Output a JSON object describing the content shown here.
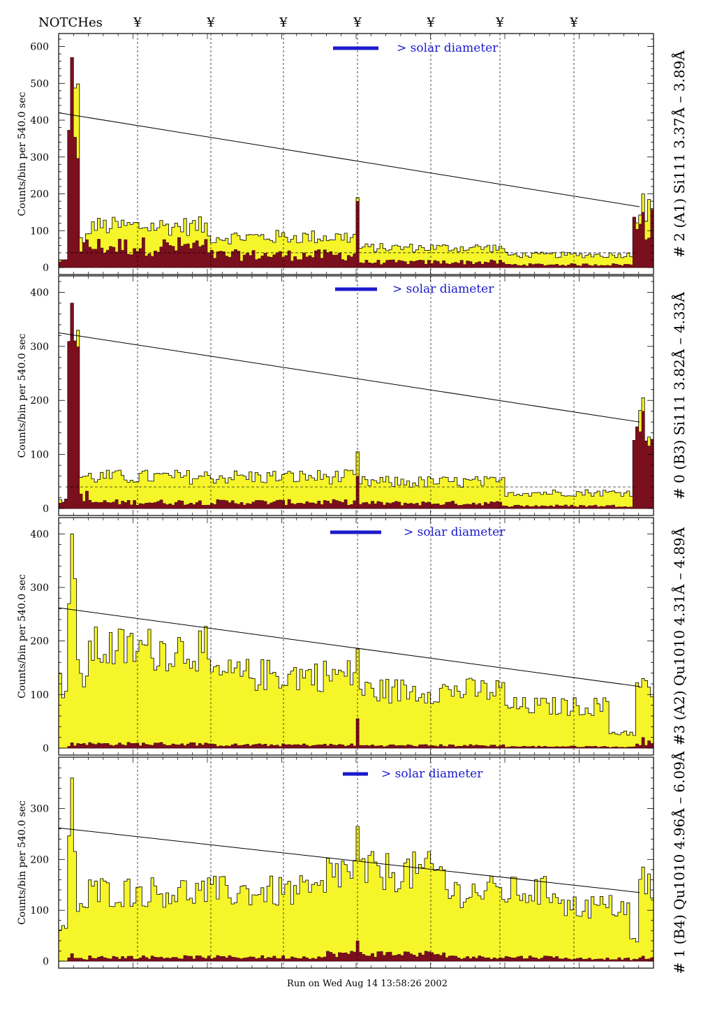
{
  "header": {
    "notches_label": "NOTCHes",
    "notch_symbol": "¥",
    "notch_count": 7
  },
  "footer": {
    "run_text": "Run on Wed Aug 14 13:58:26 2002"
  },
  "colors": {
    "fill_total": "#f5f52a",
    "fill_peak": "#7a0f1e",
    "legend_bar": "#1a1acc",
    "frame": "#000000"
  },
  "chart_data": [
    {
      "type": "bar",
      "panel_label": "# 2 (A1) Si111  3.37Å – 3.89Å",
      "ylabel": "Counts/bin per    540.0 sec",
      "legend_text": "> solar diameter",
      "ylim": [
        0,
        620
      ],
      "yticks": [
        0,
        100,
        200,
        300,
        400,
        500,
        600
      ],
      "bins": 200,
      "trend_line": {
        "start": 420,
        "end": 165
      },
      "dashed_level": 40,
      "peaks": [
        {
          "bin": 4,
          "total": 570,
          "dark": 570
        },
        {
          "bin": 100,
          "total": 190,
          "dark": 180
        },
        {
          "bin": 196,
          "total": 200,
          "dark": 150
        }
      ],
      "segments": [
        {
          "from": 0,
          "to": 3,
          "total": 20,
          "dark": 20
        },
        {
          "from": 3,
          "to": 7,
          "total": 450,
          "dark": 440
        },
        {
          "from": 7,
          "to": 10,
          "total": 80,
          "dark": 60
        },
        {
          "from": 10,
          "to": 50,
          "total": 115,
          "dark": 60
        },
        {
          "from": 50,
          "to": 100,
          "total": 85,
          "dark": 35
        },
        {
          "from": 100,
          "to": 150,
          "total": 55,
          "dark": 15
        },
        {
          "from": 150,
          "to": 193,
          "total": 35,
          "dark": 8
        },
        {
          "from": 193,
          "to": 200,
          "total": 160,
          "dark": 140
        }
      ]
    },
    {
      "type": "bar",
      "panel_label": "# 0 (B3) Si111  3.82Å – 4.33Å",
      "ylabel": "Counts/bin per    540.0 sec",
      "legend_text": "> solar diameter",
      "ylim": [
        0,
        420
      ],
      "yticks": [
        0,
        100,
        200,
        300,
        400
      ],
      "bins": 200,
      "trend_line": {
        "start": 325,
        "end": 160
      },
      "dashed_level": 40,
      "peaks": [
        {
          "bin": 4,
          "total": 380,
          "dark": 380
        },
        {
          "bin": 100,
          "total": 105,
          "dark": 60
        },
        {
          "bin": 196,
          "total": 205,
          "dark": 180
        }
      ],
      "segments": [
        {
          "from": 0,
          "to": 3,
          "total": 15,
          "dark": 15
        },
        {
          "from": 3,
          "to": 7,
          "total": 340,
          "dark": 330
        },
        {
          "from": 7,
          "to": 10,
          "total": 60,
          "dark": 25
        },
        {
          "from": 10,
          "to": 100,
          "total": 60,
          "dark": 12
        },
        {
          "from": 100,
          "to": 150,
          "total": 50,
          "dark": 10
        },
        {
          "from": 150,
          "to": 193,
          "total": 30,
          "dark": 5
        },
        {
          "from": 193,
          "to": 200,
          "total": 160,
          "dark": 150
        }
      ]
    },
    {
      "type": "bar",
      "panel_label": "#3 (A2) Qu1010  4.31Å – 4.89Å",
      "ylabel": "Counts/bin per    540.0 sec",
      "legend_text": "> solar diameter",
      "ylim": [
        0,
        420
      ],
      "yticks": [
        0,
        100,
        200,
        300,
        400
      ],
      "bins": 200,
      "trend_line": {
        "start": 262,
        "end": 115
      },
      "dashed_level": 0,
      "peaks": [
        {
          "bin": 4,
          "total": 400,
          "dark": 10
        },
        {
          "bin": 100,
          "total": 185,
          "dark": 55
        },
        {
          "bin": 196,
          "total": 130,
          "dark": 20
        }
      ],
      "segments": [
        {
          "from": 0,
          "to": 3,
          "total": 120,
          "dark": 0
        },
        {
          "from": 3,
          "to": 6,
          "total": 280,
          "dark": 5
        },
        {
          "from": 6,
          "to": 10,
          "total": 140,
          "dark": 10
        },
        {
          "from": 10,
          "to": 50,
          "total": 190,
          "dark": 8
        },
        {
          "from": 50,
          "to": 100,
          "total": 140,
          "dark": 6
        },
        {
          "from": 100,
          "to": 150,
          "total": 110,
          "dark": 5
        },
        {
          "from": 150,
          "to": 185,
          "total": 80,
          "dark": 3
        },
        {
          "from": 185,
          "to": 194,
          "total": 30,
          "dark": 2
        },
        {
          "from": 194,
          "to": 200,
          "total": 110,
          "dark": 10
        }
      ]
    },
    {
      "type": "bar",
      "panel_label": "# 1 (B4) Qu1010  4.96Å – 6.09Å",
      "ylabel": "Counts/bin per    540.0 sec",
      "legend_text": "> solar diameter",
      "ylim": [
        0,
        390
      ],
      "yticks": [
        0,
        100,
        200,
        300
      ],
      "bins": 200,
      "trend_line": {
        "start": 262,
        "end": 135
      },
      "dashed_level": 0,
      "peaks": [
        {
          "bin": 4,
          "total": 360,
          "dark": 15
        },
        {
          "bin": 100,
          "total": 265,
          "dark": 40
        },
        {
          "bin": 196,
          "total": 185,
          "dark": 10
        }
      ],
      "segments": [
        {
          "from": 0,
          "to": 3,
          "total": 60,
          "dark": 0
        },
        {
          "from": 3,
          "to": 6,
          "total": 220,
          "dark": 5
        },
        {
          "from": 6,
          "to": 10,
          "total": 110,
          "dark": 5
        },
        {
          "from": 10,
          "to": 90,
          "total": 140,
          "dark": 8
        },
        {
          "from": 90,
          "to": 130,
          "total": 180,
          "dark": 15
        },
        {
          "from": 130,
          "to": 170,
          "total": 140,
          "dark": 8
        },
        {
          "from": 170,
          "to": 192,
          "total": 110,
          "dark": 5
        },
        {
          "from": 192,
          "to": 195,
          "total": 40,
          "dark": 3
        },
        {
          "from": 195,
          "to": 200,
          "total": 150,
          "dark": 5
        }
      ]
    }
  ]
}
